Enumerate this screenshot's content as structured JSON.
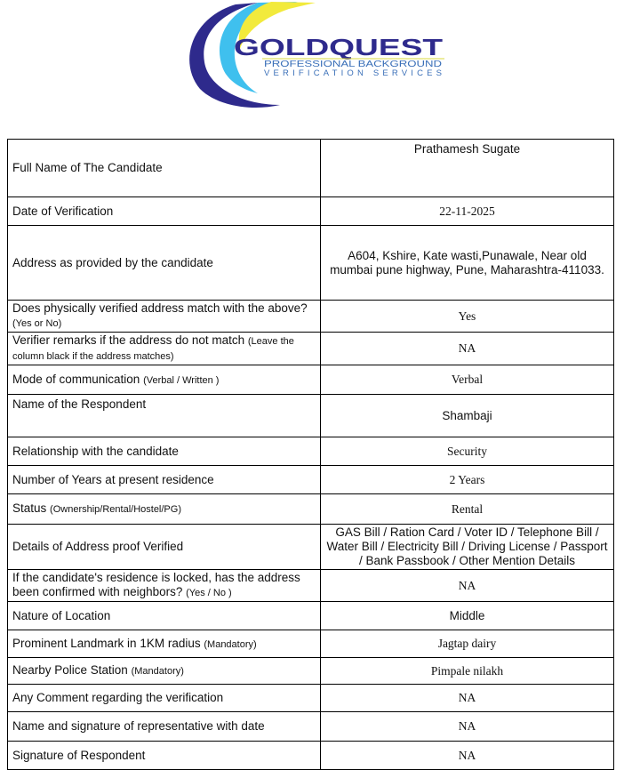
{
  "logo": {
    "brand": "GOLDQUEST",
    "line1": "PROFESSIONAL BACKGROUND",
    "line2": "VERIFICATION SERVICES",
    "colors": {
      "navy": "#2e2a8c",
      "yellow": "#f2ea3c",
      "cyan": "#3fc0ee"
    }
  },
  "rows": [
    {
      "label": "Full Name of The Candidate",
      "value": "Prathamesh Sugate"
    },
    {
      "label": "Date of Verification",
      "value": "22-11-2025"
    },
    {
      "label": "Address as provided by the candidate",
      "value": "A604, Kshire, Kate wasti,Punawale, Near old mumbai pune highway, Pune, Maharashtra-411033."
    },
    {
      "label": "Does physically verified address match with the above?",
      "label_note": "(Yes or No)",
      "value": "Yes"
    },
    {
      "label": "Verifier remarks if the address do not match",
      "label_note": "(Leave the column black if the address matches)",
      "value": "NA"
    },
    {
      "label": "Mode of communication",
      "label_note": "(Verbal / Written )",
      "value": "Verbal"
    },
    {
      "label": "Name of the Respondent",
      "value": "Shambaji"
    },
    {
      "label": "Relationship with the candidate",
      "value": "Security"
    },
    {
      "label": "Number of Years at present residence",
      "value": "2 Years"
    },
    {
      "label": "Status",
      "label_note": "(Ownership/Rental/Hostel/PG)",
      "value": "Rental"
    },
    {
      "label": "Details of Address proof Verified",
      "value": "GAS Bill / Ration Card / Voter ID / Telephone Bill / Water Bill / Electricity Bill / Driving License / Passport / Bank Passbook / Other Mention Details"
    },
    {
      "label": "If the candidate's residence is locked, has the address been confirmed with neighbors?",
      "label_note": "(Yes / No )",
      "value": "NA"
    },
    {
      "label": "Nature of Location",
      "value": "Middle"
    },
    {
      "label": "Prominent Landmark in 1KM radius",
      "label_note": "(Mandatory)",
      "value": "Jagtap dairy"
    },
    {
      "label": "Nearby Police Station",
      "label_note": "(Mandatory)",
      "value": "Pimpale nilakh"
    },
    {
      "label": "Any Comment regarding the verification",
      "value": "NA"
    },
    {
      "label": "Name and signature of representative with date",
      "value": "NA"
    },
    {
      "label": "Signature of Respondent",
      "value": "NA"
    }
  ]
}
